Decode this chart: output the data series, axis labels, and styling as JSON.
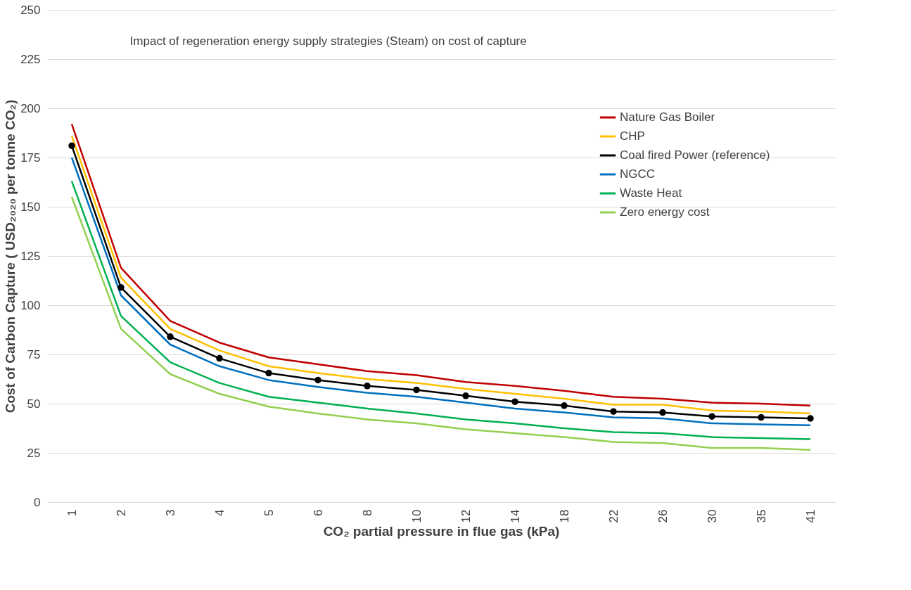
{
  "chart_data": {
    "type": "line",
    "title": "Impact of regeneration energy supply strategies (Steam) on cost of capture",
    "xlabel": "CO₂ partial pressure in flue gas (kPa)",
    "ylabel": "Cost of Carbon Capture ( USD₂₀₂₀ per tonne CO₂)",
    "categories": [
      "1",
      "2",
      "3",
      "4",
      "5",
      "6",
      "8",
      "10",
      "12",
      "14",
      "18",
      "22",
      "26",
      "30",
      "35",
      "41"
    ],
    "series": [
      {
        "name": "Nature Gas Boiler",
        "color": "#c00000",
        "marker": "none",
        "values": [
          192,
          119,
          92,
          81,
          73.5,
          70,
          66.5,
          64.5,
          61,
          59,
          56.5,
          53.5,
          52.5,
          50.5,
          50,
          49
        ]
      },
      {
        "name": "CHP",
        "color": "#ffc000",
        "marker": "none",
        "values": [
          186,
          114,
          88,
          77,
          69,
          65.5,
          62.5,
          60.5,
          57.5,
          55,
          52.5,
          49.5,
          49.5,
          46.5,
          46,
          45
        ]
      },
      {
        "name": "Coal fired Power (reference)",
        "color": "#000000",
        "marker": "circle",
        "values": [
          181,
          109,
          84,
          73,
          65.5,
          62,
          59,
          57,
          54,
          51,
          49,
          46,
          45.5,
          43.5,
          43,
          42.5
        ]
      },
      {
        "name": "NGCC",
        "color": "#0070c0",
        "marker": "none",
        "values": [
          175,
          105,
          80,
          69,
          62,
          58.5,
          55.5,
          53.5,
          50.5,
          47.5,
          45.5,
          43,
          42.5,
          40,
          39.5,
          39
        ]
      },
      {
        "name": "Waste Heat",
        "color": "#00b050",
        "marker": "none",
        "values": [
          163,
          94.5,
          71,
          60.5,
          53.5,
          50.5,
          47.5,
          45,
          42,
          40,
          37.5,
          35.5,
          35,
          33,
          32.5,
          32
        ]
      },
      {
        "name": "Zero energy cost",
        "color": "#92d050",
        "marker": "none",
        "values": [
          155,
          88,
          65,
          55,
          48.5,
          45,
          42,
          40,
          37,
          35,
          33,
          30.5,
          30,
          27.5,
          27.5,
          26.5
        ]
      }
    ],
    "ylim": [
      0,
      250
    ],
    "yticks": [
      0,
      25,
      50,
      75,
      100,
      125,
      150,
      175,
      200,
      225,
      250
    ],
    "grid": "y",
    "legend": "top right",
    "line_style": "solid"
  }
}
